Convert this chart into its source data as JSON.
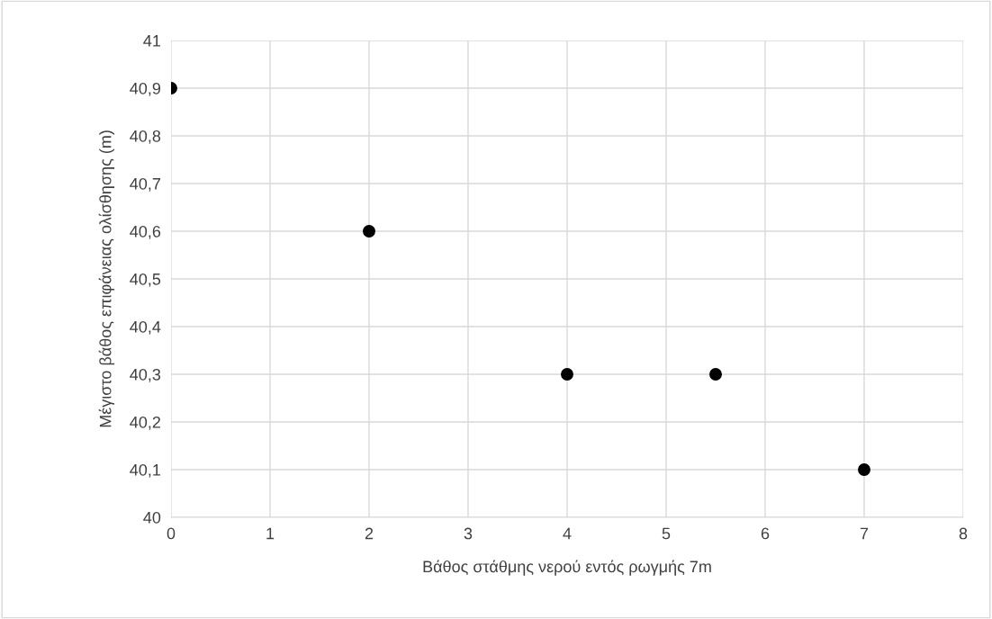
{
  "chart_data": {
    "type": "scatter",
    "xlabel": "Βάθος στάθμης νερού εντός ρωγμής 7m",
    "ylabel": "Μέγιστο βάθος επιφάνειας ολίσθησης (m)",
    "x": [
      0,
      2,
      4,
      5.5,
      7
    ],
    "series": [
      {
        "color": "#000000",
        "values": [
          40.9,
          40.6,
          40.3,
          40.3,
          40.1
        ]
      }
    ],
    "xlim": [
      0,
      8
    ],
    "xticks": [
      0,
      1,
      2,
      3,
      4,
      5,
      6,
      7,
      8
    ],
    "ylim": [
      40,
      41
    ],
    "yticks": [
      40,
      {
        "value": 40.1,
        "label": "40,1"
      },
      {
        "value": 40.2,
        "label": "40,2"
      },
      {
        "value": 40.3,
        "label": "40,3"
      },
      {
        "value": 40.4,
        "label": "40,4"
      },
      {
        "value": 40.5,
        "label": "40,5"
      },
      {
        "value": 40.6,
        "label": "40,6"
      },
      {
        "value": 40.7,
        "label": "40,7"
      },
      {
        "value": 40.8,
        "label": "40,8"
      },
      {
        "value": 40.9,
        "label": "40,9"
      },
      41
    ],
    "grid": true,
    "marker": "circle"
  }
}
